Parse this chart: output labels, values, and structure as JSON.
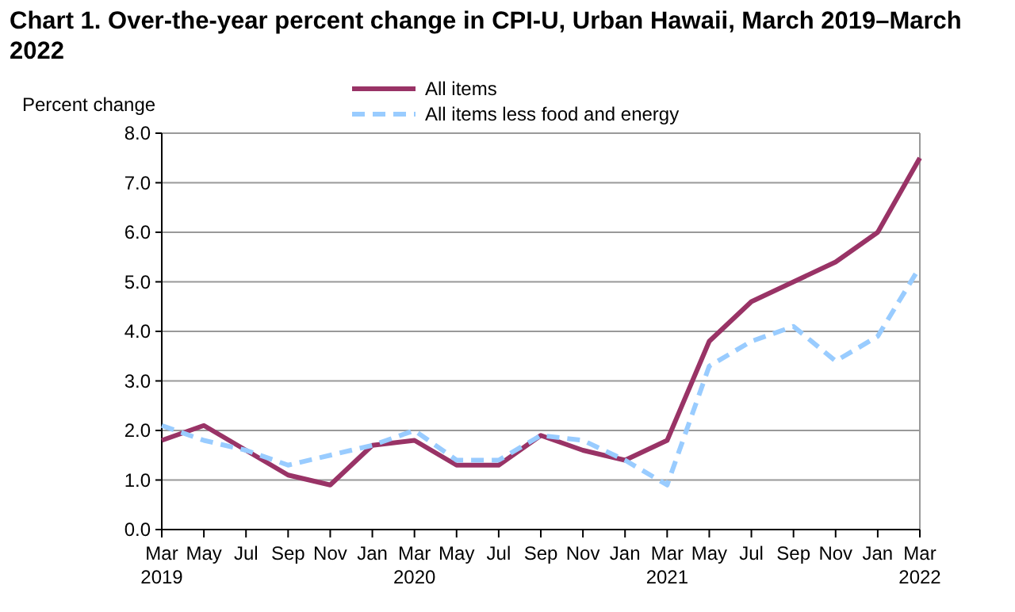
{
  "chart_data": {
    "type": "line",
    "title": "Chart 1. Over-the-year percent change in CPI-U, Urban Hawaii, March 2019–March 2022",
    "ylabel": "Percent change",
    "categories": [
      "Mar 2019",
      "May",
      "Jul",
      "Sep",
      "Nov",
      "Jan",
      "Mar 2020",
      "May",
      "Jul",
      "Sep",
      "Nov",
      "Jan",
      "Mar 2021",
      "May",
      "Jul",
      "Sep",
      "Nov",
      "Jan",
      "Mar 2022"
    ],
    "series": [
      {
        "name": "All items",
        "color": "#993366",
        "line_style": "solid",
        "values": [
          1.8,
          2.1,
          1.6,
          1.1,
          0.9,
          1.7,
          1.8,
          1.3,
          1.3,
          1.9,
          1.6,
          1.4,
          1.8,
          3.8,
          4.6,
          5.0,
          5.4,
          6.0,
          7.5
        ]
      },
      {
        "name": "All items less food and energy",
        "color": "#99ccff",
        "line_style": "dashed",
        "values": [
          2.1,
          1.8,
          1.6,
          1.3,
          1.5,
          1.7,
          2.0,
          1.4,
          1.4,
          1.9,
          1.8,
          1.4,
          0.9,
          3.3,
          3.8,
          4.1,
          3.4,
          3.9,
          5.3
        ]
      }
    ],
    "ylim": [
      0,
      8
    ],
    "yticks": [
      {
        "value": 0,
        "label": "0.0"
      },
      {
        "value": 1,
        "label": "1.0"
      },
      {
        "value": 2,
        "label": "2.0"
      },
      {
        "value": 3,
        "label": "3.0"
      },
      {
        "value": 4,
        "label": "4.0"
      },
      {
        "value": 5,
        "label": "5.0"
      },
      {
        "value": 6,
        "label": "6.0"
      },
      {
        "value": 7,
        "label": "7.0"
      },
      {
        "value": 8,
        "label": "8.0"
      }
    ],
    "grid": "y",
    "legend": "top"
  }
}
